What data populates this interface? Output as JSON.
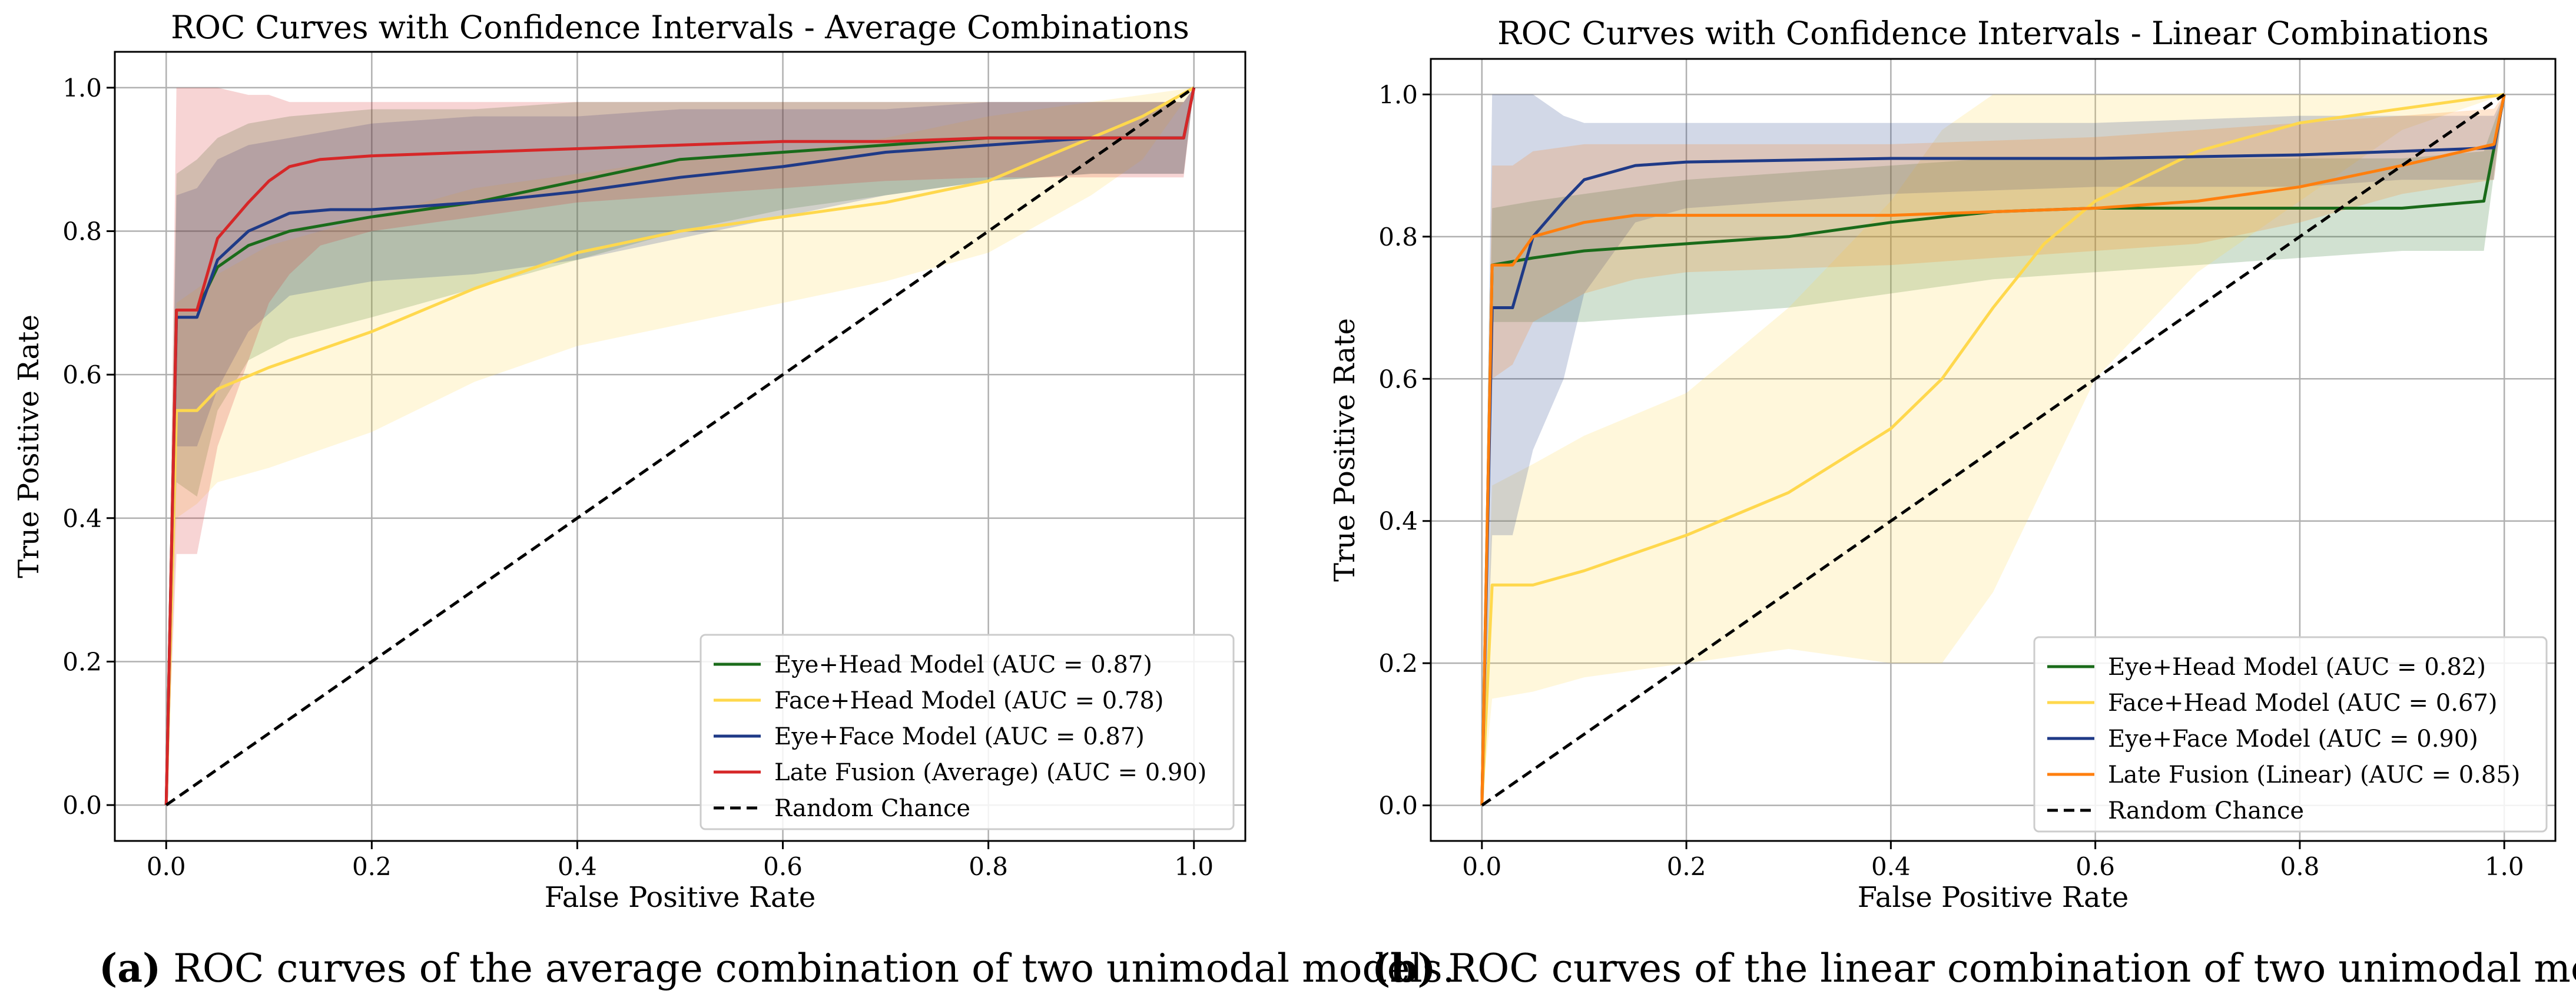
{
  "chart_data": [
    {
      "type": "line",
      "title": "ROC Curves with Confidence Intervals - Average Combinations",
      "xlabel": "False Positive Rate",
      "ylabel": "True Positive Rate",
      "xlim": [
        -0.05,
        1.05
      ],
      "ylim": [
        -0.05,
        1.05
      ],
      "xticks": [
        "0.0",
        "0.2",
        "0.4",
        "0.6",
        "0.8",
        "1.0"
      ],
      "yticks": [
        "0.0",
        "0.2",
        "0.4",
        "0.6",
        "0.8",
        "1.0"
      ],
      "grid": true,
      "legend_position": "lower-right",
      "caption_label": "(a)",
      "caption_text": " ROC curves of the average combination of two unimodal models.",
      "series": [
        {
          "name": "Eye+Head Model (AUC = 0.87)",
          "color": "#1a6b1a",
          "x": [
            0,
            0.01,
            0.03,
            0.05,
            0.08,
            0.12,
            0.2,
            0.3,
            0.4,
            0.5,
            0.6,
            0.7,
            0.8,
            0.9,
            0.99,
            1.0
          ],
          "y": [
            0,
            0.69,
            0.69,
            0.75,
            0.78,
            0.8,
            0.82,
            0.84,
            0.87,
            0.9,
            0.91,
            0.92,
            0.93,
            0.93,
            0.93,
            1.0
          ],
          "lower": [
            0,
            0.45,
            0.43,
            0.55,
            0.62,
            0.65,
            0.68,
            0.72,
            0.76,
            0.8,
            0.83,
            0.85,
            0.87,
            0.88,
            0.88,
            1.0
          ],
          "upper": [
            0,
            0.88,
            0.9,
            0.93,
            0.95,
            0.96,
            0.97,
            0.97,
            0.98,
            0.98,
            0.98,
            0.98,
            0.98,
            0.98,
            0.98,
            1.0
          ]
        },
        {
          "name": "Face+Head Model (AUC = 0.78)",
          "color": "#ffd84d",
          "x": [
            0,
            0.01,
            0.03,
            0.05,
            0.1,
            0.2,
            0.3,
            0.4,
            0.5,
            0.6,
            0.7,
            0.8,
            0.9,
            0.95,
            1.0
          ],
          "y": [
            0,
            0.55,
            0.55,
            0.58,
            0.61,
            0.66,
            0.72,
            0.77,
            0.8,
            0.82,
            0.84,
            0.87,
            0.93,
            0.96,
            1.0
          ],
          "lower": [
            0,
            0.4,
            0.42,
            0.45,
            0.47,
            0.52,
            0.59,
            0.64,
            0.67,
            0.7,
            0.73,
            0.77,
            0.85,
            0.9,
            1.0
          ],
          "upper": [
            0,
            0.7,
            0.72,
            0.74,
            0.78,
            0.82,
            0.86,
            0.88,
            0.9,
            0.91,
            0.93,
            0.96,
            0.98,
            0.99,
            1.0
          ]
        },
        {
          "name": "Eye+Face Model (AUC = 0.87)",
          "color": "#1f3a87",
          "x": [
            0,
            0.01,
            0.03,
            0.05,
            0.08,
            0.12,
            0.16,
            0.2,
            0.3,
            0.4,
            0.5,
            0.6,
            0.7,
            0.8,
            0.9,
            0.99,
            1.0
          ],
          "y": [
            0,
            0.68,
            0.68,
            0.76,
            0.8,
            0.825,
            0.83,
            0.83,
            0.84,
            0.855,
            0.875,
            0.89,
            0.91,
            0.92,
            0.93,
            0.93,
            1.0
          ],
          "lower": [
            0,
            0.5,
            0.5,
            0.58,
            0.66,
            0.71,
            0.72,
            0.73,
            0.74,
            0.76,
            0.79,
            0.82,
            0.85,
            0.87,
            0.88,
            0.88,
            1.0
          ],
          "upper": [
            0,
            0.85,
            0.86,
            0.9,
            0.92,
            0.93,
            0.94,
            0.95,
            0.96,
            0.96,
            0.97,
            0.97,
            0.97,
            0.98,
            0.98,
            0.98,
            1.0
          ]
        },
        {
          "name": "Late Fusion (Average) (AUC = 0.90)",
          "color": "#d62728",
          "x": [
            0,
            0.01,
            0.03,
            0.05,
            0.08,
            0.1,
            0.12,
            0.15,
            0.2,
            0.3,
            0.4,
            0.5,
            0.6,
            0.7,
            0.8,
            0.9,
            0.99,
            1.0
          ],
          "y": [
            0,
            0.69,
            0.69,
            0.79,
            0.84,
            0.87,
            0.89,
            0.9,
            0.905,
            0.91,
            0.915,
            0.92,
            0.925,
            0.925,
            0.93,
            0.93,
            0.93,
            1.0
          ],
          "lower": [
            0,
            0.35,
            0.35,
            0.5,
            0.62,
            0.7,
            0.74,
            0.78,
            0.8,
            0.82,
            0.84,
            0.85,
            0.86,
            0.87,
            0.875,
            0.875,
            0.875,
            1.0
          ],
          "upper": [
            0,
            1.0,
            1.0,
            1.0,
            0.99,
            0.99,
            0.98,
            0.98,
            0.98,
            0.98,
            0.98,
            0.98,
            0.98,
            0.98,
            0.98,
            0.98,
            0.98,
            1.0
          ]
        },
        {
          "name": "Random Chance",
          "color": "#000000",
          "dashed": true,
          "x": [
            0,
            1
          ],
          "y": [
            0,
            1
          ]
        }
      ]
    },
    {
      "type": "line",
      "title": "ROC Curves with Confidence Intervals - Linear Combinations",
      "xlabel": "False Positive Rate",
      "ylabel": "True Positive Rate",
      "xlim": [
        -0.05,
        1.05
      ],
      "ylim": [
        -0.05,
        1.05
      ],
      "xticks": [
        "0.0",
        "0.2",
        "0.4",
        "0.6",
        "0.8",
        "1.0"
      ],
      "yticks": [
        "0.0",
        "0.2",
        "0.4",
        "0.6",
        "0.8",
        "1.0"
      ],
      "grid": true,
      "legend_position": "lower-right",
      "caption_label": "(b)",
      "caption_text": " ROC curves of the linear combination of two unimodal models.",
      "series": [
        {
          "name": "Eye+Head Model (AUC = 0.82)",
          "color": "#1a6b1a",
          "x": [
            0,
            0.01,
            0.05,
            0.1,
            0.2,
            0.3,
            0.4,
            0.5,
            0.6,
            0.7,
            0.8,
            0.9,
            0.98,
            1.0
          ],
          "y": [
            0,
            0.76,
            0.77,
            0.78,
            0.79,
            0.8,
            0.82,
            0.835,
            0.84,
            0.84,
            0.84,
            0.84,
            0.85,
            1.0
          ],
          "lower": [
            0,
            0.68,
            0.68,
            0.68,
            0.69,
            0.7,
            0.72,
            0.74,
            0.75,
            0.76,
            0.77,
            0.78,
            0.78,
            1.0
          ],
          "upper": [
            0,
            0.84,
            0.85,
            0.86,
            0.88,
            0.89,
            0.9,
            0.91,
            0.91,
            0.91,
            0.91,
            0.91,
            0.92,
            1.0
          ]
        },
        {
          "name": "Face+Head Model (AUC = 0.67)",
          "color": "#ffd84d",
          "x": [
            0,
            0.01,
            0.05,
            0.1,
            0.2,
            0.3,
            0.4,
            0.45,
            0.5,
            0.55,
            0.6,
            0.7,
            0.8,
            0.9,
            1.0
          ],
          "y": [
            0,
            0.31,
            0.31,
            0.33,
            0.38,
            0.44,
            0.53,
            0.6,
            0.7,
            0.79,
            0.85,
            0.92,
            0.96,
            0.98,
            1.0
          ],
          "lower": [
            0,
            0.15,
            0.16,
            0.18,
            0.2,
            0.22,
            0.2,
            0.2,
            0.3,
            0.45,
            0.6,
            0.75,
            0.85,
            0.95,
            1.0
          ],
          "upper": [
            0,
            0.45,
            0.48,
            0.52,
            0.58,
            0.7,
            0.85,
            0.95,
            1.0,
            1.0,
            1.0,
            1.0,
            1.0,
            1.0,
            1.0
          ]
        },
        {
          "name": "Eye+Face Model (AUC = 0.90)",
          "color": "#1f3a87",
          "x": [
            0,
            0.01,
            0.03,
            0.05,
            0.08,
            0.1,
            0.15,
            0.2,
            0.4,
            0.6,
            0.8,
            0.9,
            0.99,
            1.0
          ],
          "y": [
            0,
            0.7,
            0.7,
            0.8,
            0.85,
            0.88,
            0.9,
            0.905,
            0.91,
            0.91,
            0.915,
            0.92,
            0.925,
            1.0
          ],
          "lower": [
            0,
            0.38,
            0.38,
            0.5,
            0.6,
            0.72,
            0.82,
            0.84,
            0.86,
            0.87,
            0.87,
            0.88,
            0.88,
            1.0
          ],
          "upper": [
            0,
            1.0,
            1.0,
            1.0,
            0.97,
            0.96,
            0.96,
            0.96,
            0.96,
            0.96,
            0.97,
            0.97,
            0.97,
            1.0
          ]
        },
        {
          "name": "Late Fusion (Linear) (AUC = 0.85)",
          "color": "#ff7f0e",
          "x": [
            0,
            0.01,
            0.03,
            0.05,
            0.1,
            0.15,
            0.2,
            0.4,
            0.6,
            0.7,
            0.8,
            0.9,
            0.99,
            1.0
          ],
          "y": [
            0,
            0.76,
            0.76,
            0.8,
            0.82,
            0.83,
            0.83,
            0.83,
            0.84,
            0.85,
            0.87,
            0.9,
            0.93,
            1.0
          ],
          "lower": [
            0,
            0.6,
            0.62,
            0.68,
            0.72,
            0.74,
            0.75,
            0.76,
            0.78,
            0.79,
            0.82,
            0.86,
            0.88,
            1.0
          ],
          "upper": [
            0,
            0.9,
            0.9,
            0.92,
            0.93,
            0.93,
            0.93,
            0.93,
            0.94,
            0.95,
            0.96,
            0.97,
            0.98,
            1.0
          ]
        },
        {
          "name": "Random Chance",
          "color": "#000000",
          "dashed": true,
          "x": [
            0,
            1
          ],
          "y": [
            0,
            1
          ]
        }
      ]
    }
  ]
}
